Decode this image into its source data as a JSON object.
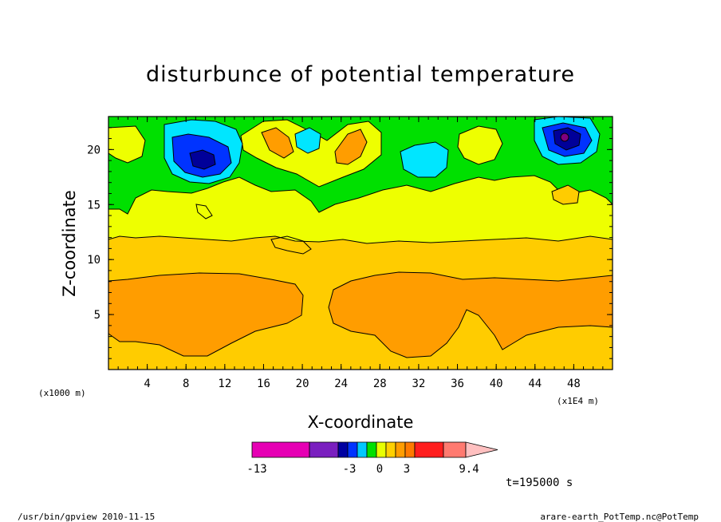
{
  "chart_data": {
    "type": "contour",
    "title": "disturbunce of potential temperature",
    "xlabel": "X-coordinate",
    "ylabel": "Z-coordinate",
    "x_unit_label": "(x1E4 m)",
    "y_unit_label": "(x1000 m)",
    "xlim": [
      0,
      52
    ],
    "ylim": [
      0,
      23
    ],
    "x_ticks": [
      4,
      8,
      12,
      16,
      20,
      24,
      28,
      32,
      36,
      40,
      44,
      48
    ],
    "y_ticks": [
      5,
      10,
      15,
      20
    ],
    "time_label": "t=195000 s",
    "colorbar": {
      "tick_labels": [
        "-13",
        "-3",
        "0",
        "3",
        "9.4"
      ],
      "colors": [
        "#e600b4",
        "#7a1fbf",
        "#0000a0",
        "#0033ff",
        "#00c8ff",
        "#00e000",
        "#e8ff00",
        "#ffd000",
        "#ff9d00",
        "#ff7a00",
        "#ff1e1e",
        "#ff7a70",
        "#ffc0c0"
      ]
    },
    "levels_fill": {
      "orange": "#ff9d00",
      "light_orange": "#ffcc00",
      "yellow": "#eeff00",
      "green": "#00e000",
      "cyan": "#00e6ff",
      "blue": "#0033ff",
      "dark_blue": "#000099",
      "purple": "#800080",
      "dark_orange": "#ff8800"
    }
  },
  "footer": {
    "left": "/usr/bin/gpview   2010-11-15",
    "right": "arare-earth_PotTemp.nc@PotTemp"
  }
}
